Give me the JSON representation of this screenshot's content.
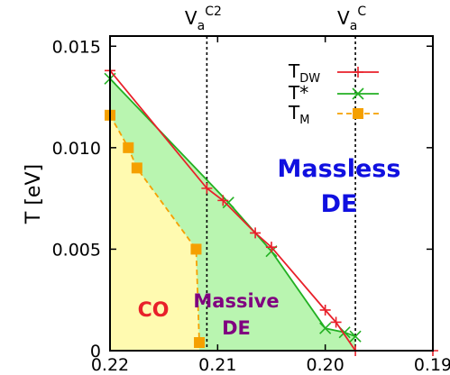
{
  "chart_data": {
    "type": "line",
    "xlabel": "",
    "ylabel": "T [eV]",
    "xlim": [
      0.22,
      0.19
    ],
    "ylim": [
      0,
      0.0155
    ],
    "x_ticks": [
      {
        "value": 0.22,
        "label": "0.22"
      },
      {
        "value": 0.21,
        "label": "0.21"
      },
      {
        "value": 0.2,
        "label": "0.20"
      },
      {
        "value": 0.19,
        "label": "0.19"
      }
    ],
    "y_ticks": [
      {
        "value": 0,
        "label": "0"
      },
      {
        "value": 0.005,
        "label": "0.005"
      },
      {
        "value": 0.01,
        "label": "0.010"
      },
      {
        "value": 0.015,
        "label": "0.015"
      }
    ],
    "series": [
      {
        "name": "T",
        "subscript": "DW",
        "color": "#e8202a",
        "marker": "plus",
        "dashed": false,
        "points": [
          [
            0.22,
            0.0138
          ],
          [
            0.211,
            0.008
          ],
          [
            0.2095,
            0.0074
          ],
          [
            0.2065,
            0.0058
          ],
          [
            0.205,
            0.0051
          ],
          [
            0.2,
            0.002
          ],
          [
            0.199,
            0.0014
          ],
          [
            0.1972,
            0.0
          ],
          [
            0.19,
            0.0
          ]
        ]
      },
      {
        "name": "T*",
        "subscript": "",
        "color": "#22b022",
        "marker": "cross",
        "dashed": false,
        "points": [
          [
            0.22,
            0.0134
          ],
          [
            0.209,
            0.0073
          ],
          [
            0.205,
            0.0049
          ],
          [
            0.2,
            0.0011
          ],
          [
            0.1982,
            0.0009
          ],
          [
            0.1972,
            0.0007
          ]
        ]
      },
      {
        "name": "T",
        "subscript": "M",
        "color": "#f5a000",
        "marker": "square",
        "dashed": true,
        "points": [
          [
            0.22,
            0.0116
          ],
          [
            0.2183,
            0.01
          ],
          [
            0.2175,
            0.009
          ],
          [
            0.212,
            0.005
          ],
          [
            0.2117,
            0.0004
          ]
        ]
      }
    ],
    "vertical_lines": [
      {
        "x": 0.211,
        "label_main": "V",
        "label_sub": "a",
        "label_sup": "C2"
      },
      {
        "x": 0.1972,
        "label_main": "V",
        "label_sub": "a",
        "label_sup": "C"
      }
    ],
    "regions": [
      {
        "name": "CO",
        "fill": "#fffab0",
        "label_color": "#e8202a"
      },
      {
        "name": "Massive DE",
        "fill": "#b9f5b0",
        "label_color": "#800080"
      }
    ],
    "region_labels": {
      "co": "CO",
      "massive_1": "Massive",
      "massive_2": "DE",
      "massless_1": "Massless",
      "massless_2": "DE"
    },
    "region_label_colors": {
      "co": "#e8202a",
      "massive": "#800080",
      "massless": "#1010e0"
    },
    "legend_position": "top-right",
    "grid": false
  }
}
